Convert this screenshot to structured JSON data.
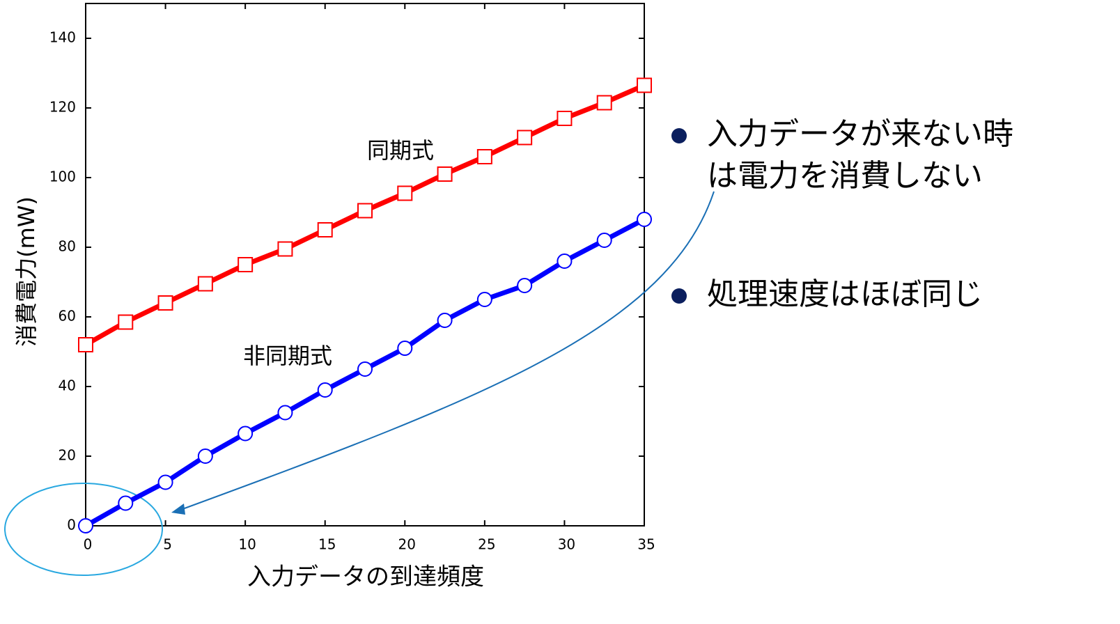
{
  "chart_data": {
    "type": "line",
    "xlabel": "入力データの到達頻度",
    "ylabel": "消費電力(mW)",
    "x": [
      0,
      2.5,
      5,
      7.5,
      10,
      12.5,
      15,
      17.5,
      20,
      22.5,
      25,
      27.5,
      30,
      32.5,
      35
    ],
    "series": [
      {
        "name": "同期式",
        "color": "#ff0000",
        "marker": "square",
        "values": [
          52,
          58.5,
          64,
          69.5,
          75,
          79.5,
          85,
          90.5,
          95.5,
          101,
          106,
          111.5,
          117,
          121.5,
          126.5
        ]
      },
      {
        "name": "非同期式",
        "color": "#0000ff",
        "marker": "circle",
        "values": [
          0,
          6.5,
          12.5,
          20,
          26.5,
          32.5,
          39,
          45,
          51,
          59,
          65,
          69,
          76,
          82,
          88
        ]
      }
    ],
    "xlim": [
      0,
      35
    ],
    "xticks": [
      0,
      5,
      10,
      15,
      20,
      25,
      30,
      35
    ],
    "ylim": [
      0,
      150
    ],
    "yticks": [
      0,
      20,
      40,
      60,
      80,
      100,
      120,
      140
    ]
  },
  "bullets": [
    {
      "lines": [
        "入力データが来ない時",
        "は電力を消費しない"
      ]
    },
    {
      "lines": [
        "処理速度はほぼ同じ"
      ]
    }
  ]
}
